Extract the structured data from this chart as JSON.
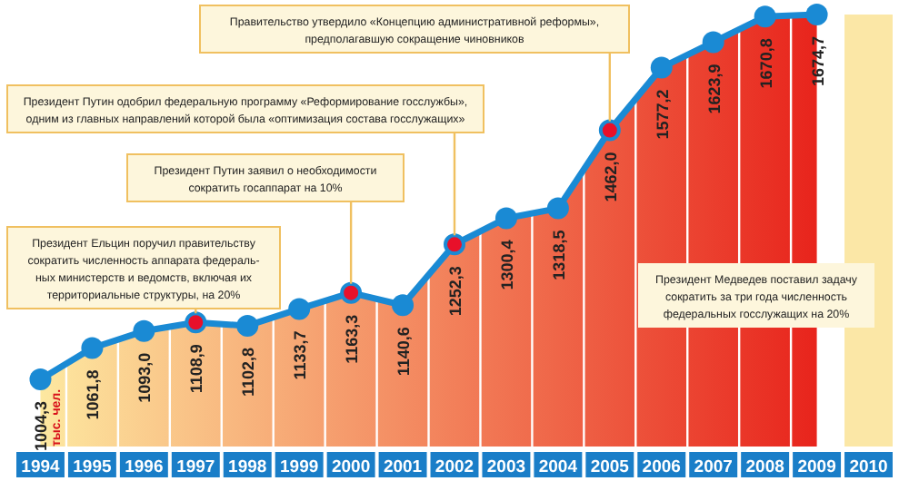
{
  "chart_data": {
    "type": "area",
    "categories": [
      "1994",
      "1995",
      "1996",
      "1997",
      "1998",
      "1999",
      "2000",
      "2001",
      "2002",
      "2003",
      "2004",
      "2005",
      "2006",
      "2007",
      "2008",
      "2009",
      "2010"
    ],
    "series": [
      {
        "color": "#1a8ad4",
        "values": [
          1004.3,
          1061.8,
          1093.0,
          1108.9,
          1102.8,
          1133.7,
          1163.3,
          1140.6,
          1252.3,
          1300.4,
          1318.5,
          1462.0,
          1577.2,
          1623.9,
          1670.8,
          1674.7,
          null
        ],
        "value_labels": [
          "1004,3",
          "1061,8",
          "1093,0",
          "1108,9",
          "1102,8",
          "1133,7",
          "1163,3",
          "1140,6",
          "1252,3",
          "1300,4",
          "1318,5",
          "1462,0",
          "1577,2",
          "1623,9",
          "1670,8",
          "1674,7",
          null
        ]
      }
    ],
    "marker": "circle",
    "annotations": [
      {
        "text": "Президент Ельцин поручил правительству\nсократить численность аппарата федераль-\nных министерств и ведомств, включая их\nтерриториальные структуры, на 20%",
        "x": "1997",
        "y": 1108.9
      },
      {
        "text": "Президент Путин заявил о необходимости\nсократить госаппарат на 10%",
        "x": "2000",
        "y": 1163.3
      },
      {
        "text": "Президент Путин одобрил федеральную программу «Реформирование госслужбы»,\nодним из главных направлений которой была «оптимизация состава госслужащих»",
        "x": "2002",
        "y": 1252.3
      },
      {
        "text": "Правительство утвердило «Концепцию административной реформы»,\nпредполагавшую сокращение чиновников",
        "x": "2005",
        "y": 1462.0
      },
      "Президент Медведев поставил задачу\nсократить за три года численность\nфедеральных госслужащих на 20%",
      "тыс. чел."
    ]
  }
}
